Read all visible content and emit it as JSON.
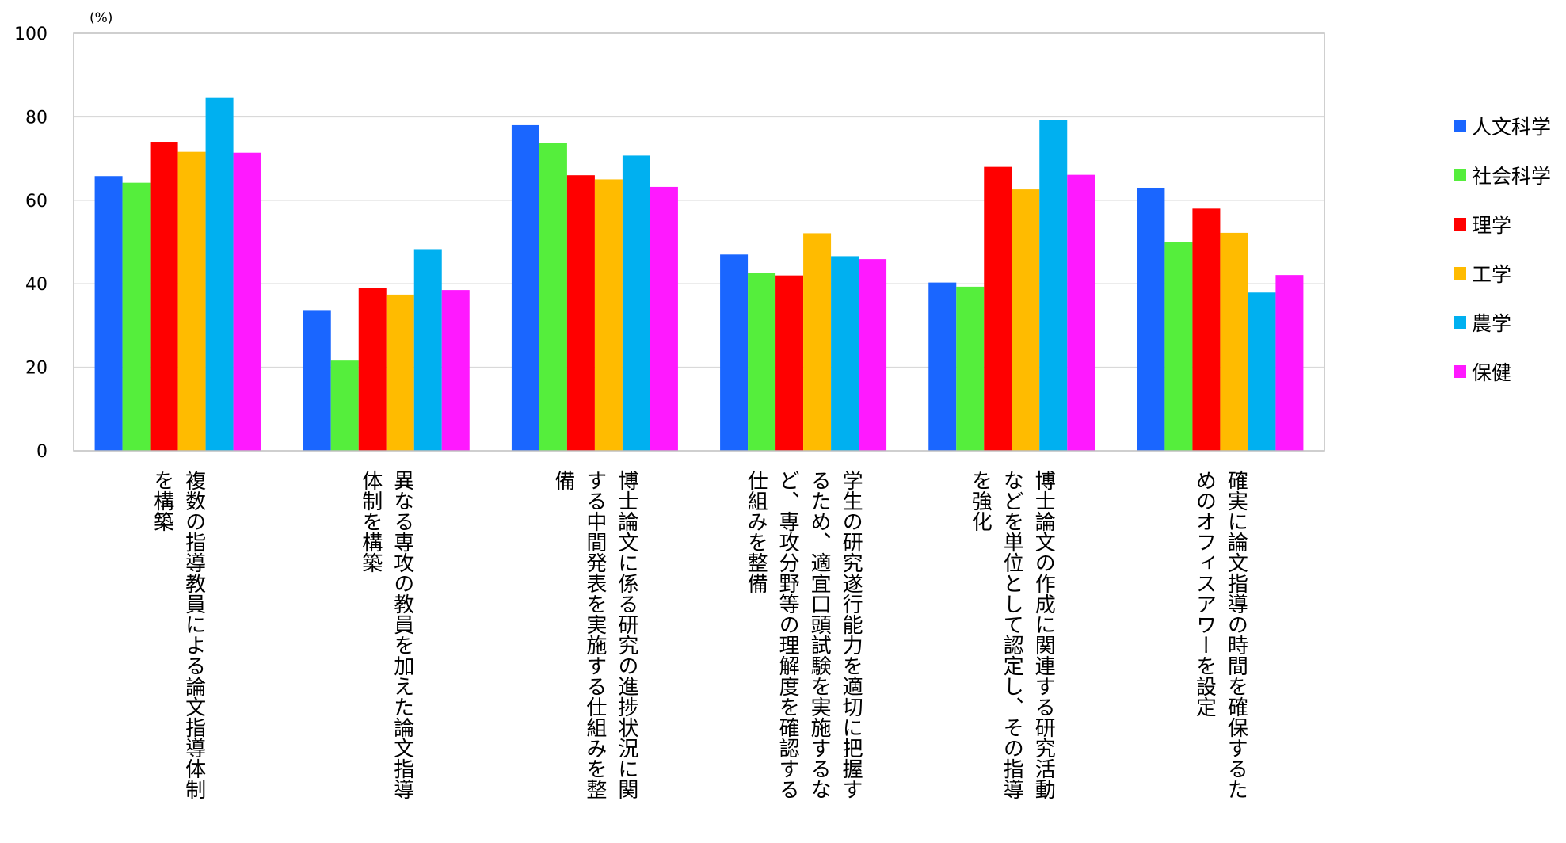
{
  "chart_data": {
    "type": "bar",
    "unit_label": "(%)",
    "ylim": [
      0,
      100
    ],
    "yticks": [
      "0",
      "20",
      "40",
      "60",
      "80",
      "100"
    ],
    "grid": true,
    "legend_position": "right",
    "categories": [
      [
        "複数の指導教員による論文指導体制",
        "を構築"
      ],
      [
        "異なる専攻の教員を加えた論文指導",
        "体制を構築"
      ],
      [
        "博士論文に係る研究の進捗状況に関",
        "する中間発表を実施する仕組みを整",
        "備"
      ],
      [
        "学生の研究遂行能力を適切に把握す",
        "るため、適宜口頭試験を実施するな",
        "ど、専攻分野等の理解度を確認する",
        "仕組みを整備"
      ],
      [
        "博士論文の作成に関連する研究活動",
        "などを単位として認定し、その指導",
        "を強化"
      ],
      [
        "確実に論文指導の時間を確保するた",
        "めのオフィスアワーを設定"
      ]
    ],
    "series": [
      {
        "name": "人文科学",
        "color": "#1a66ff",
        "values": [
          65.8,
          33.7,
          78.0,
          47.0,
          40.3,
          63.0
        ]
      },
      {
        "name": "社会科学",
        "color": "#55ee3c",
        "values": [
          64.2,
          21.6,
          73.7,
          42.6,
          39.3,
          50.0
        ]
      },
      {
        "name": "理学",
        "color": "#ff0000",
        "values": [
          74.0,
          39.0,
          66.0,
          42.0,
          68.0,
          58.0
        ]
      },
      {
        "name": "工学",
        "color": "#ffbb00",
        "values": [
          71.6,
          37.4,
          65.0,
          52.1,
          62.6,
          52.2
        ]
      },
      {
        "name": "農学",
        "color": "#00b0f0",
        "values": [
          84.5,
          48.3,
          70.7,
          46.6,
          79.3,
          37.9
        ]
      },
      {
        "name": "保健",
        "color": "#ff19ff",
        "values": [
          71.4,
          38.5,
          63.2,
          45.9,
          66.1,
          42.1
        ]
      }
    ]
  }
}
